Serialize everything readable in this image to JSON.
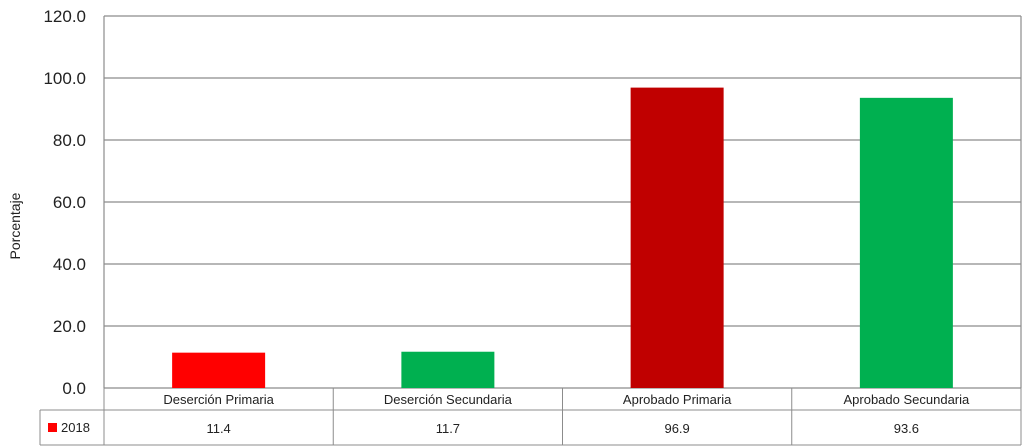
{
  "chart_data": {
    "type": "bar",
    "ylabel": "Porcentaje",
    "ylim": [
      0,
      120
    ],
    "yticks": [
      "0.0",
      "20.0",
      "40.0",
      "60.0",
      "80.0",
      "100.0",
      "120.0"
    ],
    "ytick_values": [
      0,
      20,
      40,
      60,
      80,
      100,
      120
    ],
    "categories": [
      "Deserción Primaria",
      "Deserción Secundaria",
      "Aprobado Primaria",
      "Aprobado Secundaria"
    ],
    "values": [
      11.4,
      11.7,
      96.9,
      93.6
    ],
    "value_labels": [
      "11.4",
      "11.7",
      "96.9",
      "93.6"
    ],
    "bar_colors": [
      "#ff0000",
      "#00b050",
      "#c00000",
      "#00b050"
    ],
    "series": [
      {
        "name": "2018",
        "color": "#ff0000",
        "values": [
          11.4,
          11.7,
          96.9,
          93.6
        ]
      }
    ],
    "grid": true,
    "legend_position": "data-table"
  }
}
